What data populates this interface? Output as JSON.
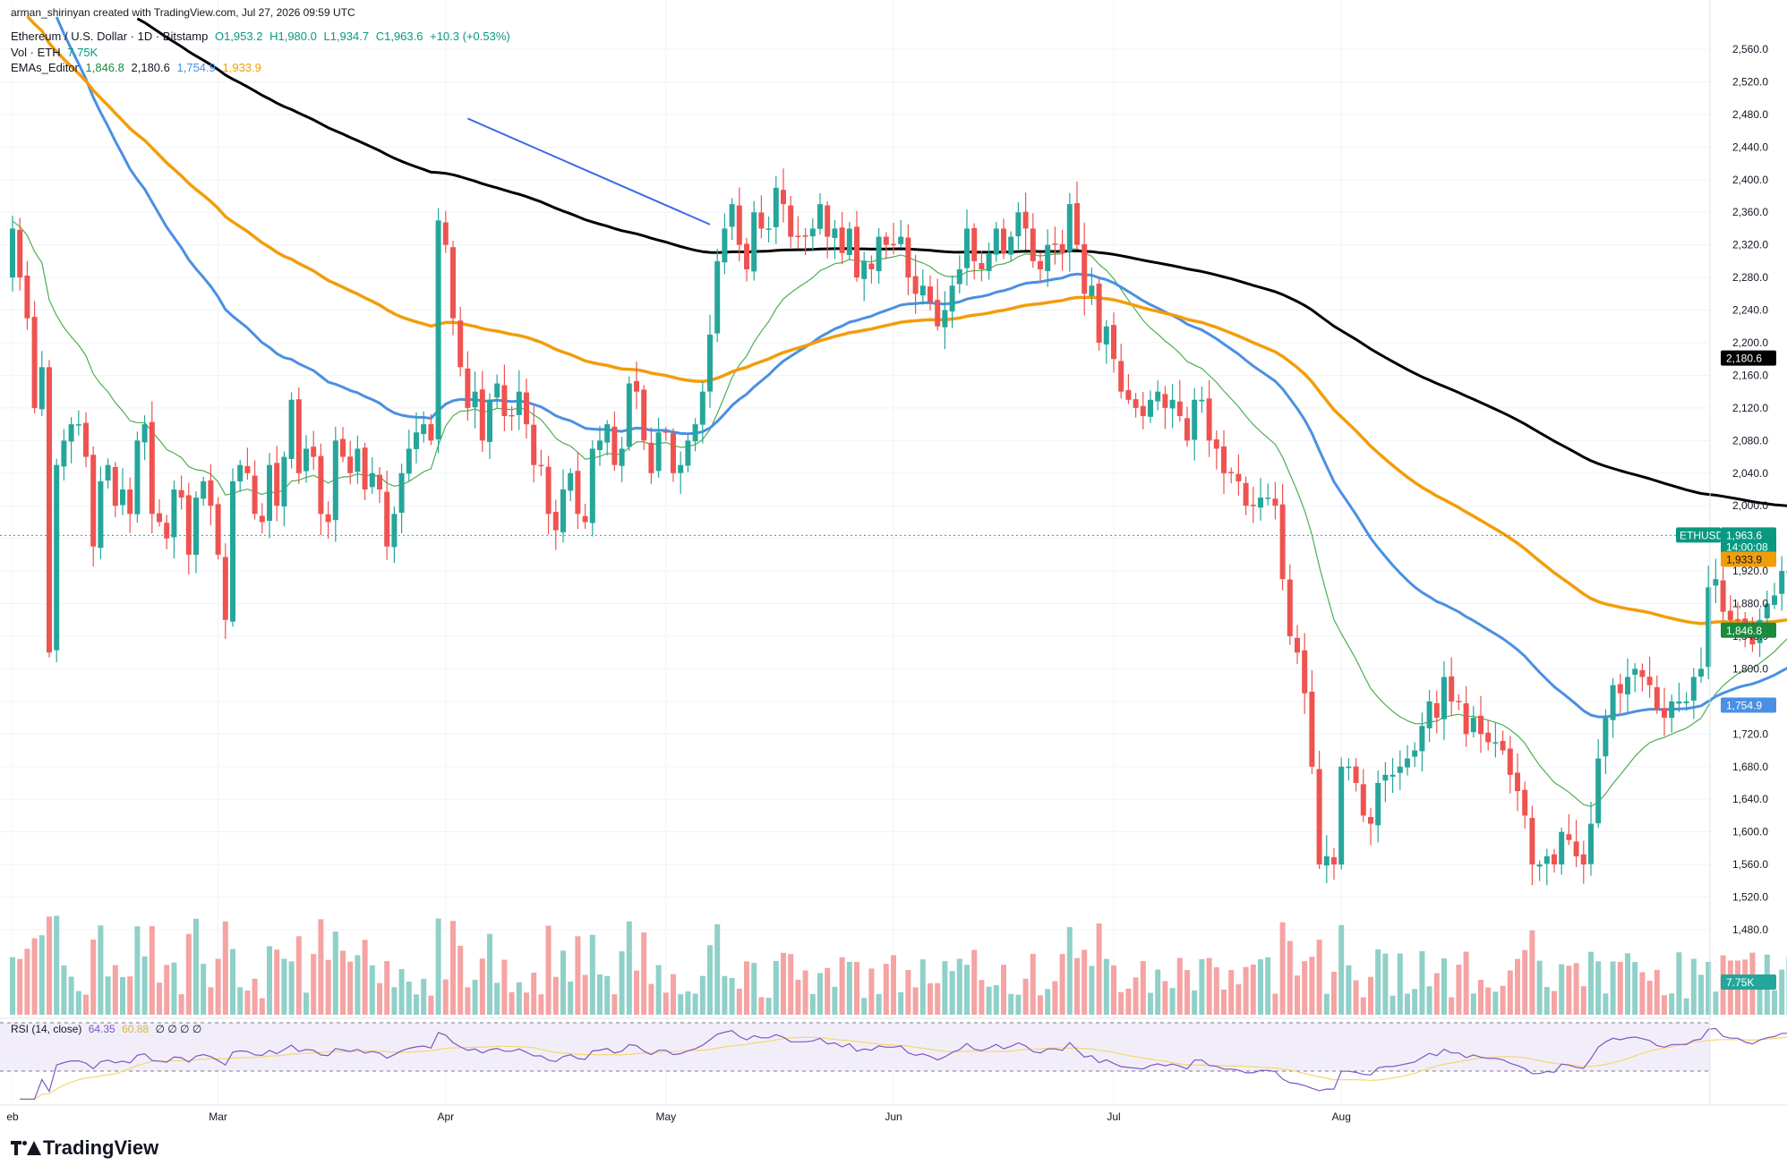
{
  "header": {
    "author_line": "arman_shirinyan created with TradingView.com, Jul 27, 2026 09:59 UTC",
    "symbol": "Ethereum / U.S. Dollar · 1D · Bitstamp",
    "ohlc": {
      "o": "O1,953.2",
      "h": "H1,980.0",
      "l": "L1,934.7",
      "c": "C1,963.6",
      "chg": "+10.3 (+0.53%)"
    },
    "vol_label": "Vol · ETH",
    "vol_value": "7.75K",
    "ema_label": "EMAs_Editor",
    "ema_values": [
      "1,846.8",
      "2,180.6",
      "1,754.9",
      "1,933.9"
    ]
  },
  "rsi_header": {
    "label": "RSI (14, close)",
    "value": "64.35",
    "ma": "60.88",
    "zeros": "∅ ∅ ∅ ∅"
  },
  "brand": "TradingView",
  "colors": {
    "up": "#26a69a",
    "down": "#ef5350",
    "vol_up": "#8fd0c8",
    "vol_down": "#f5a3a3",
    "ema20": "#4caf50",
    "ema50": "#4a90e2",
    "ema100": "#f29d0a",
    "ema200": "#000000",
    "rsi": "#7e57c2",
    "rsi_ma": "#f5d76e"
  },
  "chart_data": {
    "type": "candlestick",
    "y_axis": {
      "min": 1480,
      "max": 2560,
      "step": 40,
      "tick_labels": [
        "2,560.0",
        "2,520.0",
        "2,480.0",
        "2,440.0",
        "2,400.0",
        "2,360.0",
        "2,320.0",
        "2,280.0",
        "2,240.0",
        "2,200.0",
        "2,160.0",
        "2,120.0",
        "2,080.0",
        "2,040.0",
        "2,000.0",
        "1,960.0",
        "1,920.0",
        "1,880.0",
        "1,840.0",
        "1,800.0",
        "1,760.0",
        "1,720.0",
        "1,680.0",
        "1,640.0",
        "1,600.0",
        "1,560.0",
        "1,520.0",
        "1,480.0"
      ]
    },
    "x_labels": [
      {
        "label": "eb",
        "day": 0
      },
      {
        "label": "Mar",
        "day": 28
      },
      {
        "label": "Apr",
        "day": 59
      },
      {
        "label": "May",
        "day": 89
      },
      {
        "label": "Jun",
        "day": 120
      },
      {
        "label": "Jul",
        "day": 150
      },
      {
        "label": "Aug",
        "day": 181
      }
    ],
    "price_labels": [
      {
        "text": "2,180.6",
        "value": 2180.6,
        "bg": "#000000",
        "color": "#ffffff"
      },
      {
        "text": "ETHUSD",
        "value": 1963.6,
        "bg": "#089981",
        "color": "#ffffff",
        "left": true
      },
      {
        "text": "1,963.6",
        "value": 1963.6,
        "bg": "#089981",
        "color": "#ffffff",
        "sub": "14:00:08"
      },
      {
        "text": "1,933.9",
        "value": 1933.9,
        "bg": "#f29d0a",
        "color": "#131722"
      },
      {
        "text": "1,846.8",
        "value": 1846.8,
        "bg": "#1b8a3d",
        "color": "#ffffff"
      },
      {
        "text": "1,754.9",
        "value": 1754.9,
        "bg": "#4a90e2",
        "color": "#ffffff"
      },
      {
        "text": "7.75K",
        "value": null,
        "bg": "#26a69a",
        "color": "#ffffff",
        "volume": true
      }
    ],
    "closes": [
      2340,
      2280,
      2230,
      2120,
      2170,
      1820,
      2050,
      2080,
      2100,
      2100,
      2060,
      1950,
      2030,
      2050,
      2000,
      2020,
      1990,
      2080,
      2100,
      1990,
      1980,
      1960,
      2020,
      2010,
      1940,
      2010,
      2030,
      2000,
      1940,
      1860,
      2030,
      2050,
      2040,
      1990,
      1980,
      2050,
      2000,
      2060,
      2130,
      2040,
      2070,
      2060,
      1990,
      1980,
      2080,
      2060,
      2040,
      2070,
      2020,
      2040,
      2020,
      1950,
      1990,
      2040,
      2070,
      2090,
      2100,
      2080,
      2350,
      2320,
      2230,
      2170,
      2120,
      2140,
      2080,
      2130,
      2150,
      2110,
      2110,
      2140,
      2100,
      2050,
      2050,
      1990,
      1970,
      2020,
      2040,
      1990,
      1980,
      2070,
      2080,
      2100,
      2050,
      2070,
      2150,
      2140,
      2080,
      2040,
      2090,
      2090,
      2040,
      2050,
      2080,
      2100,
      2140,
      2210,
      2300,
      2340,
      2370,
      2320,
      2290,
      2360,
      2340,
      2340,
      2390,
      2370,
      2330,
      2330,
      2330,
      2340,
      2370,
      2330,
      2340,
      2310,
      2340,
      2280,
      2300,
      2290,
      2330,
      2320,
      2320,
      2330,
      2280,
      2260,
      2270,
      2250,
      2220,
      2240,
      2270,
      2290,
      2340,
      2300,
      2290,
      2310,
      2340,
      2310,
      2330,
      2360,
      2340,
      2300,
      2290,
      2320,
      2320,
      2310,
      2370,
      2320,
      2260,
      2270,
      2200,
      2220,
      2180,
      2140,
      2130,
      2120,
      2110,
      2130,
      2140,
      2120,
      2130,
      2110,
      2080,
      2130,
      2130,
      2080,
      2070,
      2040,
      2040,
      2030,
      2000,
      2000,
      2010,
      2010,
      2000,
      1910,
      1840,
      1820,
      1770,
      1680,
      1560,
      1570,
      1560,
      1680,
      1680,
      1660,
      1620,
      1610,
      1660,
      1670,
      1670,
      1680,
      1690,
      1700,
      1730,
      1760,
      1740,
      1790,
      1760,
      1760,
      1720,
      1740,
      1720,
      1710,
      1710,
      1700,
      1670,
      1650,
      1620,
      1560,
      1560,
      1570,
      1560,
      1600,
      1590,
      1570,
      1560,
      1610,
      1690,
      1740,
      1780,
      1770,
      1790,
      1800,
      1790,
      1780,
      1750,
      1740,
      1760,
      1760,
      1760,
      1790,
      1800,
      1900,
      1910,
      1870,
      1860,
      1860,
      1840,
      1830,
      1860,
      1880,
      1890,
      1920,
      1920,
      1920,
      1880,
      1880,
      1860,
      1870,
      1930,
      1953.2,
      1963.6
    ]
  }
}
